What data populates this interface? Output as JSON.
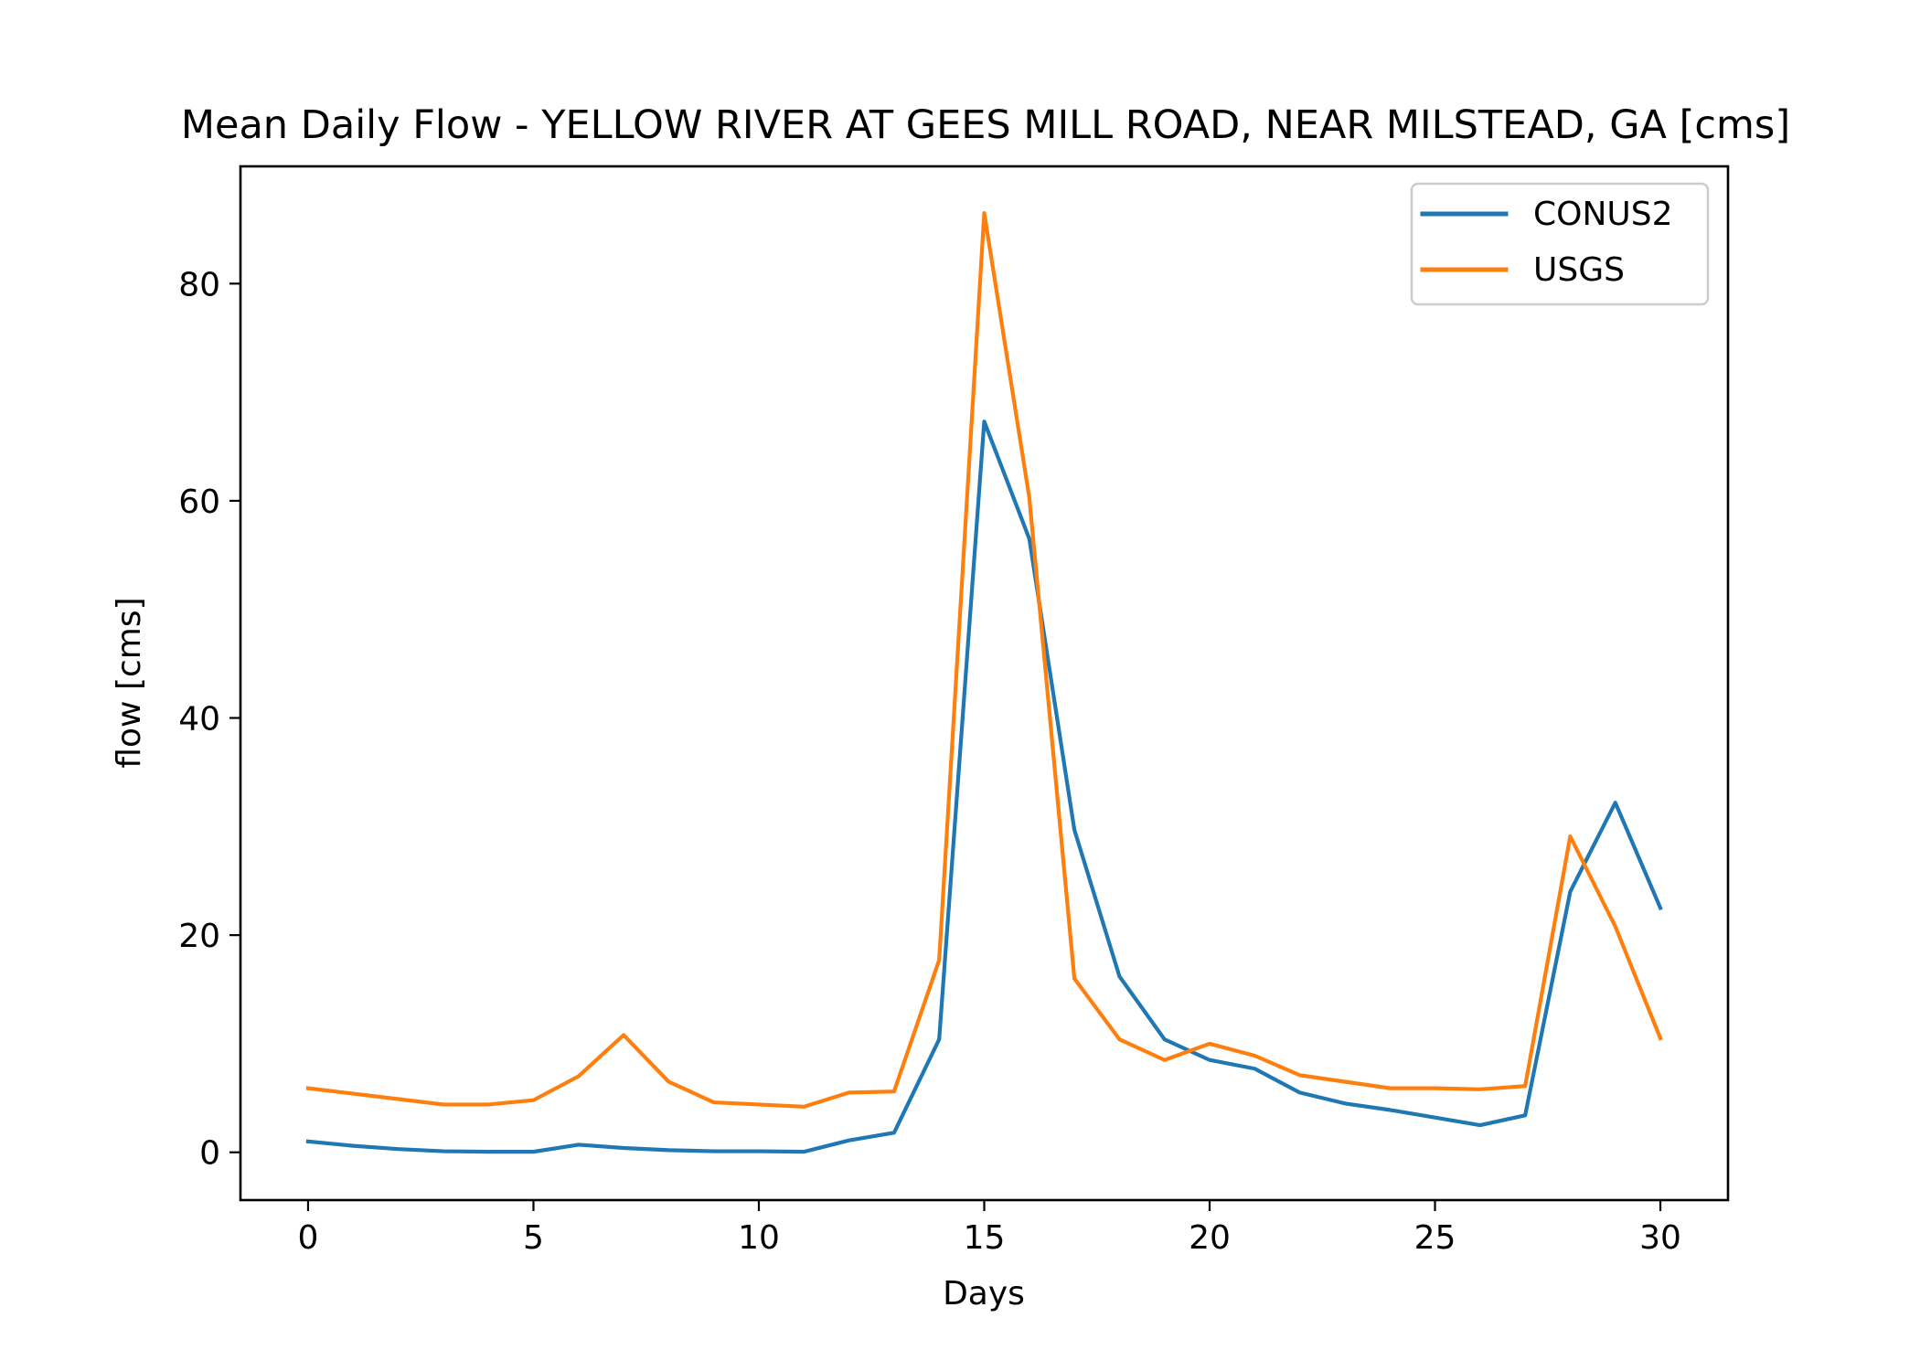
{
  "chart_data": {
    "type": "line",
    "title": "Mean Daily Flow - YELLOW RIVER AT GEES MILL ROAD, NEAR MILSTEAD, GA [cms]",
    "xlabel": "Days",
    "ylabel": "flow [cms]",
    "xlim": [
      -1.5,
      31.5
    ],
    "ylim": [
      -4.4,
      90.8
    ],
    "xticks": [
      0,
      5,
      10,
      15,
      20,
      25,
      30
    ],
    "yticks": [
      0,
      20,
      40,
      60,
      80
    ],
    "xtick_labels": [
      "0",
      "5",
      "10",
      "15",
      "20",
      "25",
      "30"
    ],
    "ytick_labels": [
      "0",
      "20",
      "40",
      "60",
      "80"
    ],
    "grid": false,
    "legend_position": "top-right",
    "x": [
      0,
      1,
      2,
      3,
      4,
      5,
      6,
      7,
      8,
      9,
      10,
      11,
      12,
      13,
      14,
      15,
      16,
      17,
      18,
      19,
      20,
      21,
      22,
      23,
      24,
      25,
      26,
      27,
      28,
      29,
      30
    ],
    "series": [
      {
        "name": "CONUS2",
        "color": "#1f77b4",
        "values": [
          1.0,
          0.6,
          0.3,
          0.1,
          0.05,
          0.05,
          0.7,
          0.4,
          0.2,
          0.1,
          0.1,
          0.05,
          1.1,
          1.8,
          10.4,
          67.3,
          56.5,
          29.7,
          16.2,
          10.4,
          8.5,
          7.7,
          5.5,
          4.5,
          3.9,
          3.2,
          2.5,
          3.4,
          24.0,
          32.2,
          22.5
        ]
      },
      {
        "name": "USGS",
        "color": "#ff7f0e",
        "values": [
          5.9,
          5.4,
          4.9,
          4.4,
          4.4,
          4.8,
          7.0,
          10.8,
          6.5,
          4.6,
          4.4,
          4.2,
          5.5,
          5.6,
          17.7,
          86.5,
          60.3,
          16.0,
          10.4,
          8.5,
          10.0,
          8.9,
          7.1,
          6.5,
          5.9,
          5.9,
          5.8,
          6.1,
          29.1,
          20.8,
          10.5
        ]
      }
    ]
  }
}
